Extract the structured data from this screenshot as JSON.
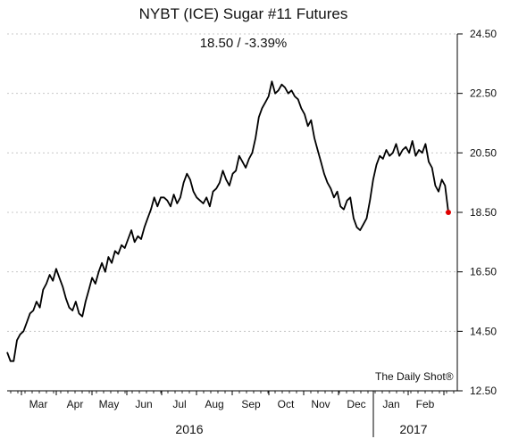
{
  "title": "NYBT (ICE) Sugar #11 Futures",
  "subtitle": "18.50  /  -3.39%",
  "watermark": "The Daily Shot®",
  "colors": {
    "line": "#000000",
    "grid": "#c8c8c8",
    "last_point": "#e00000"
  },
  "chart_data": {
    "type": "line",
    "title": "NYBT (ICE) Sugar #11 Futures",
    "subtitle": "18.50  /  -3.39%",
    "y_axis_side": "right",
    "ylim": [
      12.5,
      24.5
    ],
    "yticks": [
      "24.50",
      "22.50",
      "20.50",
      "18.50",
      "16.50",
      "14.50",
      "12.50"
    ],
    "grid": "horizontal",
    "x_month_labels": [
      "Mar",
      "Apr",
      "May",
      "Jun",
      "Jul",
      "Aug",
      "Sep",
      "Oct",
      "Nov",
      "Dec",
      "Jan",
      "Feb"
    ],
    "x_year_labels": [
      "2016",
      "2017"
    ],
    "series": [
      {
        "values": [
          13.8,
          13.5,
          13.5,
          14.2,
          14.4,
          14.5,
          14.8,
          15.1,
          15.2,
          15.5,
          15.3,
          15.9,
          16.1,
          16.4,
          16.2,
          16.6,
          16.3,
          16.0,
          15.6,
          15.3,
          15.2,
          15.5,
          15.1,
          15.0,
          15.5,
          15.9,
          16.3,
          16.1,
          16.5,
          16.8,
          16.5,
          17.0,
          16.8,
          17.2,
          17.1,
          17.4,
          17.3,
          17.6,
          17.9,
          17.5,
          17.7,
          17.6,
          18.0,
          18.3,
          18.6,
          19.0,
          18.7,
          19.0,
          19.0,
          18.9,
          18.7,
          19.1,
          18.8,
          19.0,
          19.5,
          19.8,
          19.6,
          19.2,
          19.0,
          18.9,
          18.8,
          19.0,
          18.7,
          19.2,
          19.3,
          19.5,
          19.9,
          19.6,
          19.4,
          19.8,
          19.9,
          20.4,
          20.2,
          20.0,
          20.3,
          20.5,
          21.0,
          21.7,
          22.0,
          22.2,
          22.4,
          22.9,
          22.5,
          22.6,
          22.8,
          22.7,
          22.5,
          22.6,
          22.4,
          22.3,
          22.0,
          21.8,
          21.4,
          21.6,
          21.0,
          20.6,
          20.2,
          19.8,
          19.5,
          19.3,
          19.0,
          19.2,
          18.7,
          18.6,
          18.9,
          19.0,
          18.3,
          18.0,
          17.9,
          18.1,
          18.3,
          18.9,
          19.6,
          20.1,
          20.4,
          20.3,
          20.6,
          20.4,
          20.5,
          20.8,
          20.4,
          20.6,
          20.7,
          20.5,
          20.9,
          20.4,
          20.6,
          20.5,
          20.8,
          20.2,
          20.0,
          19.4,
          19.2,
          19.6,
          19.4,
          18.5
        ]
      }
    ],
    "last_value": 18.5
  }
}
